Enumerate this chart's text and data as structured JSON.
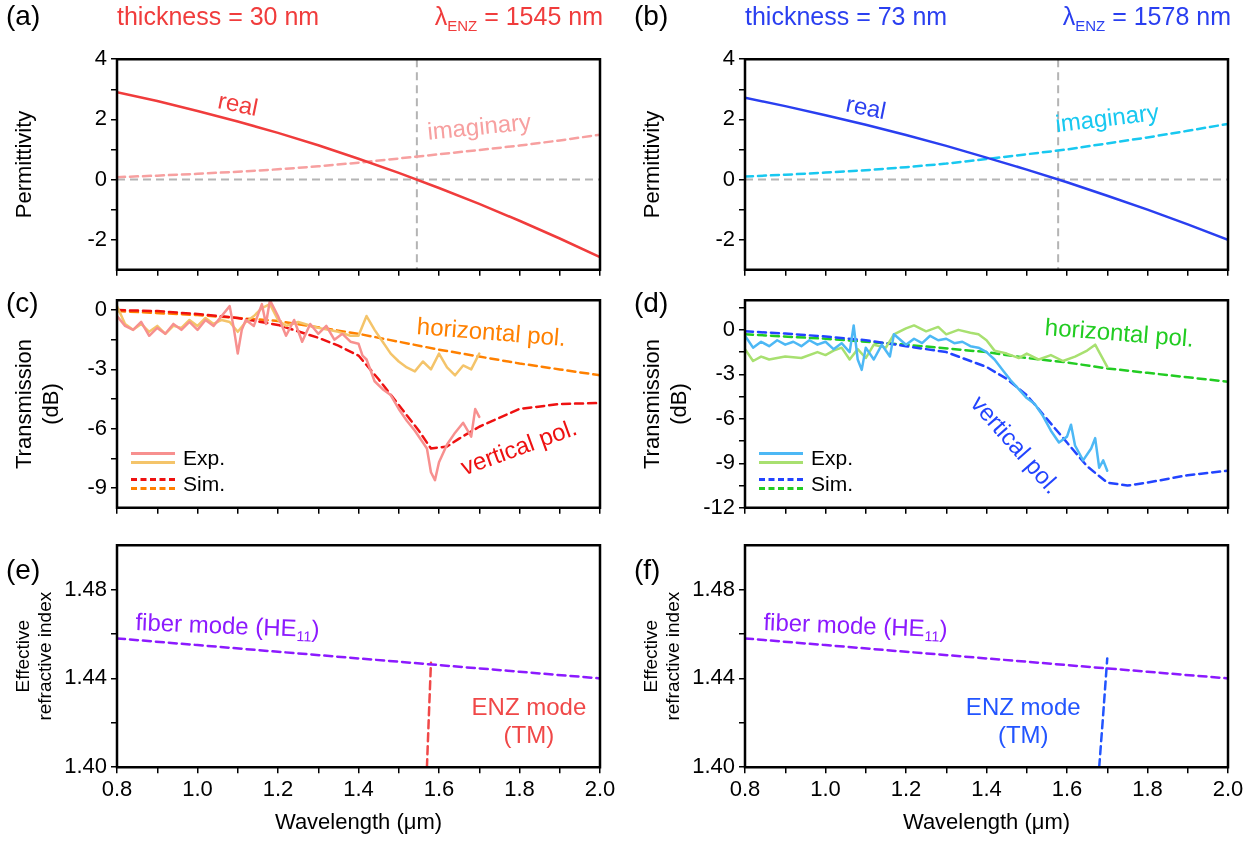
{
  "chart_data": [
    {
      "type": "line",
      "title": "thickness = 30 nm",
      "subtitle": "λ$_{ENZ}$ = 1545 nm",
      "ylabel": "Permittivity",
      "annotations": [
        "(a)"
      ],
      "x": [
        0.8,
        0.9,
        1.0,
        1.1,
        1.2,
        1.3,
        1.4,
        1.5,
        1.6,
        1.7,
        1.8,
        1.9,
        2.0
      ],
      "series": [
        {
          "name": "real",
          "color": "#f03c3c",
          "line_style": "solid",
          "values": [
            2.9,
            2.61,
            2.28,
            1.93,
            1.55,
            1.14,
            0.69,
            0.22,
            -0.28,
            -0.81,
            -1.37,
            -1.96,
            -2.58
          ]
        },
        {
          "name": "imaginary",
          "color": "#f7a0a0",
          "line_style": "dashed",
          "values": [
            0.08,
            0.13,
            0.19,
            0.26,
            0.34,
            0.44,
            0.56,
            0.7,
            0.84,
            0.98,
            1.13,
            1.3,
            1.49
          ]
        }
      ],
      "xlim": [
        0.8,
        2.0
      ],
      "xticks": [
        {
          "value": 0.8,
          "label": null
        },
        {
          "value": 0.9,
          "label": null
        },
        {
          "value": 1.0,
          "label": null
        },
        {
          "value": 1.1,
          "label": null
        },
        {
          "value": 1.2,
          "label": null
        },
        {
          "value": 1.3,
          "label": null
        },
        {
          "value": 1.4,
          "label": null
        },
        {
          "value": 1.5,
          "label": null
        },
        {
          "value": 1.6,
          "label": null
        },
        {
          "value": 1.7,
          "label": null
        },
        {
          "value": 1.8,
          "label": null
        },
        {
          "value": 1.9,
          "label": null
        },
        {
          "value": 2.0,
          "label": null
        }
      ],
      "ylim": [
        -3,
        4
      ],
      "yticks": [
        4,
        {
          "value": 3,
          "label": null
        },
        2,
        {
          "value": 1,
          "label": null
        },
        0,
        {
          "value": -1,
          "label": null
        },
        -2
      ],
      "ref_lines": [
        {
          "axis": "x",
          "value": 1.545,
          "color": "#b4b4b4",
          "line_style": "dashed"
        },
        {
          "axis": "y",
          "value": 0,
          "color": "#b4b4b4",
          "line_style": "dashed"
        }
      ],
      "tick_labels": "y",
      "legend": false,
      "grid": false
    },
    {
      "type": "line",
      "title": "thickness = 73 nm",
      "subtitle": "λ$_{ENZ}$ = 1578 nm",
      "ylabel": "Permittivity",
      "annotations": [
        "(b)"
      ],
      "x": [
        0.8,
        0.9,
        1.0,
        1.1,
        1.2,
        1.3,
        1.4,
        1.5,
        1.6,
        1.7,
        1.8,
        1.9,
        2.0
      ],
      "series": [
        {
          "name": "real",
          "color": "#2a3ff0",
          "line_style": "solid",
          "values": [
            2.72,
            2.44,
            2.14,
            1.82,
            1.48,
            1.12,
            0.73,
            0.33,
            -0.09,
            -0.54,
            -1.0,
            -1.49,
            -2.0
          ]
        },
        {
          "name": "imaginary",
          "color": "#18c8f0",
          "line_style": "dashed",
          "values": [
            0.1,
            0.16,
            0.23,
            0.31,
            0.41,
            0.53,
            0.68,
            0.84,
            1.0,
            1.2,
            1.4,
            1.62,
            1.85
          ]
        }
      ],
      "xlim": [
        0.8,
        2.0
      ],
      "xticks": [
        {
          "value": 0.8,
          "label": null
        },
        {
          "value": 0.9,
          "label": null
        },
        {
          "value": 1.0,
          "label": null
        },
        {
          "value": 1.1,
          "label": null
        },
        {
          "value": 1.2,
          "label": null
        },
        {
          "value": 1.3,
          "label": null
        },
        {
          "value": 1.4,
          "label": null
        },
        {
          "value": 1.5,
          "label": null
        },
        {
          "value": 1.6,
          "label": null
        },
        {
          "value": 1.7,
          "label": null
        },
        {
          "value": 1.8,
          "label": null
        },
        {
          "value": 1.9,
          "label": null
        },
        {
          "value": 2.0,
          "label": null
        }
      ],
      "ylim": [
        -3,
        4
      ],
      "yticks": [
        4,
        {
          "value": 3,
          "label": null
        },
        2,
        {
          "value": 1,
          "label": null
        },
        0,
        {
          "value": -1,
          "label": null
        },
        -2
      ],
      "ref_lines": [
        {
          "axis": "x",
          "value": 1.578,
          "color": "#b4b4b4",
          "line_style": "dashed"
        },
        {
          "axis": "y",
          "value": 0,
          "color": "#b4b4b4",
          "line_style": "dashed"
        }
      ],
      "tick_labels": "y",
      "legend": false,
      "grid": false
    },
    {
      "type": "line",
      "ylabel": "Transmission\n(dB)",
      "annotations": [
        "(c)",
        "horizontal pol.",
        "vertical pol."
      ],
      "series": [
        {
          "name": "Exp.",
          "color": "#f7908f",
          "line_style": "solid",
          "x": [
            0.8,
            0.82,
            0.84,
            0.86,
            0.88,
            0.9,
            0.92,
            0.94,
            0.96,
            0.98,
            1.0,
            1.02,
            1.04,
            1.06,
            1.08,
            1.09,
            1.1,
            1.11,
            1.12,
            1.14,
            1.16,
            1.17,
            1.18,
            1.2,
            1.22,
            1.24,
            1.26,
            1.28,
            1.3,
            1.32,
            1.34,
            1.36,
            1.38,
            1.4,
            1.41,
            1.42,
            1.44,
            1.46,
            1.48,
            1.5,
            1.52,
            1.54,
            1.56,
            1.57,
            1.58,
            1.59,
            1.6,
            1.62,
            1.64,
            1.66,
            1.68,
            1.69,
            1.7
          ],
          "values": [
            -0.3,
            -0.8,
            -1.0,
            -0.6,
            -1.3,
            -0.9,
            -1.2,
            -0.7,
            -1.0,
            -0.6,
            -1.0,
            -0.5,
            -0.8,
            -0.3,
            0.2,
            -0.9,
            -2.2,
            -1.0,
            -0.5,
            -0.8,
            0.3,
            -0.7,
            0.5,
            -0.3,
            -1.3,
            -0.5,
            -1.6,
            -0.7,
            -1.2,
            -0.8,
            -1.5,
            -1.2,
            -1.6,
            -1.7,
            -2.3,
            -2.5,
            -3.6,
            -4.0,
            -4.3,
            -5.0,
            -5.6,
            -6.1,
            -6.7,
            -7.0,
            -8.2,
            -8.6,
            -7.7,
            -6.8,
            -6.2,
            -5.7,
            -6.4,
            -5.0,
            -5.4
          ]
        },
        {
          "color": "#f4c46a",
          "line_style": "solid",
          "x": [
            0.8,
            0.82,
            0.84,
            0.86,
            0.88,
            0.9,
            0.92,
            0.94,
            0.96,
            0.98,
            1.0,
            1.02,
            1.04,
            1.06,
            1.08,
            1.1,
            1.12,
            1.14,
            1.16,
            1.18,
            1.2,
            1.22,
            1.25,
            1.3,
            1.35,
            1.38,
            1.4,
            1.42,
            1.44,
            1.46,
            1.48,
            1.5,
            1.52,
            1.54,
            1.56,
            1.58,
            1.6,
            1.62,
            1.64,
            1.66,
            1.68,
            1.7
          ],
          "values": [
            0.2,
            -0.7,
            -1.0,
            -0.7,
            -1.1,
            -0.8,
            -1.2,
            -0.8,
            -0.9,
            -0.5,
            -0.8,
            -0.4,
            -0.7,
            -0.5,
            -0.6,
            -1.1,
            -0.6,
            -0.3,
            0.1,
            0.3,
            -0.5,
            -0.8,
            -0.6,
            -0.9,
            -1.1,
            -1.3,
            -1.3,
            -0.3,
            -1.0,
            -1.6,
            -2.2,
            -2.6,
            -2.9,
            -3.1,
            -2.6,
            -3.0,
            -2.2,
            -2.9,
            -3.3,
            -2.8,
            -3.0,
            -2.2
          ]
        },
        {
          "name": "Sim.",
          "color": "#ee1111",
          "line_style": "dashed",
          "x": [
            0.8,
            0.9,
            1.0,
            1.1,
            1.2,
            1.3,
            1.35,
            1.4,
            1.45,
            1.5,
            1.55,
            1.58,
            1.62,
            1.65,
            1.7,
            1.8,
            1.9,
            2.0
          ],
          "values": [
            0.0,
            -0.05,
            -0.2,
            -0.4,
            -0.75,
            -1.4,
            -1.8,
            -2.3,
            -3.5,
            -4.8,
            -6.1,
            -7.0,
            -6.9,
            -6.5,
            -5.9,
            -5.0,
            -4.75,
            -4.7
          ]
        },
        {
          "color": "#ff8000",
          "line_style": "dashed",
          "x": [
            0.8,
            1.0,
            1.2,
            1.4,
            1.5,
            1.6,
            1.7,
            1.8,
            1.9,
            2.0
          ],
          "values": [
            -0.05,
            -0.25,
            -0.55,
            -1.2,
            -1.6,
            -2.0,
            -2.35,
            -2.7,
            -3.0,
            -3.3
          ]
        }
      ],
      "xlim": [
        0.8,
        2.0
      ],
      "xticks": [
        {
          "value": 0.8,
          "label": null
        },
        {
          "value": 0.9,
          "label": null
        },
        {
          "value": 1.0,
          "label": null
        },
        {
          "value": 1.1,
          "label": null
        },
        {
          "value": 1.2,
          "label": null
        },
        {
          "value": 1.3,
          "label": null
        },
        {
          "value": 1.4,
          "label": null
        },
        {
          "value": 1.5,
          "label": null
        },
        {
          "value": 1.6,
          "label": null
        },
        {
          "value": 1.7,
          "label": null
        },
        {
          "value": 1.8,
          "label": null
        },
        {
          "value": 1.9,
          "label": null
        },
        {
          "value": 2.0,
          "label": null
        }
      ],
      "ylim": [
        -10,
        0.5
      ],
      "yticks": [
        0,
        {
          "value": -1.5,
          "label": null
        },
        -3,
        {
          "value": -4.5,
          "label": null
        },
        -6,
        {
          "value": -7.5,
          "label": null
        },
        -9
      ],
      "tick_labels": "y",
      "legend": "bottom left",
      "grid": false
    },
    {
      "type": "line",
      "ylabel": "Transmission\n(dB)",
      "annotations": [
        "(d)",
        "horizontal pol.",
        "vertical pol."
      ],
      "series": [
        {
          "name": "Exp.",
          "color": "#4db8f5",
          "line_style": "solid",
          "x": [
            0.8,
            0.82,
            0.84,
            0.86,
            0.88,
            0.9,
            0.92,
            0.94,
            0.96,
            0.98,
            1.0,
            1.02,
            1.04,
            1.06,
            1.07,
            1.08,
            1.09,
            1.1,
            1.12,
            1.14,
            1.16,
            1.17,
            1.2,
            1.22,
            1.24,
            1.26,
            1.28,
            1.3,
            1.32,
            1.34,
            1.36,
            1.38,
            1.4,
            1.42,
            1.44,
            1.46,
            1.48,
            1.5,
            1.52,
            1.54,
            1.56,
            1.58,
            1.6,
            1.61,
            1.62,
            1.64,
            1.66,
            1.67,
            1.68,
            1.69,
            1.7
          ],
          "values": [
            -0.4,
            -1.2,
            -0.8,
            -1.1,
            -0.7,
            -1.0,
            -0.8,
            -1.1,
            -0.7,
            -1.0,
            -0.8,
            -1.3,
            -0.9,
            -1.5,
            0.3,
            -2.0,
            -2.7,
            -1.2,
            -2.0,
            -1.0,
            -1.8,
            -0.3,
            -1.0,
            -0.6,
            -0.9,
            -0.4,
            -0.7,
            -0.6,
            -0.9,
            -0.8,
            -1.1,
            -1.2,
            -1.5,
            -2.0,
            -2.7,
            -3.4,
            -4.0,
            -4.6,
            -5.0,
            -5.8,
            -6.8,
            -7.6,
            -7.2,
            -6.4,
            -7.8,
            -8.8,
            -8.0,
            -7.3,
            -9.3,
            -8.8,
            -9.5
          ]
        },
        {
          "color": "#a8e070",
          "line_style": "solid",
          "x": [
            0.8,
            0.82,
            0.84,
            0.86,
            0.9,
            0.94,
            0.98,
            1.0,
            1.02,
            1.04,
            1.06,
            1.08,
            1.1,
            1.12,
            1.15,
            1.17,
            1.2,
            1.22,
            1.25,
            1.28,
            1.3,
            1.33,
            1.36,
            1.38,
            1.4,
            1.42,
            1.45,
            1.48,
            1.5,
            1.53,
            1.56,
            1.59,
            1.62,
            1.65,
            1.67,
            1.68,
            1.7
          ],
          "values": [
            -1.3,
            -2.1,
            -1.8,
            -2.0,
            -1.8,
            -1.9,
            -1.5,
            -1.7,
            -1.4,
            -1.2,
            -2.0,
            -1.3,
            -1.9,
            -1.0,
            -1.2,
            -0.3,
            0.1,
            0.3,
            -0.1,
            0.2,
            -0.3,
            0.0,
            -0.2,
            -0.3,
            -0.7,
            -1.4,
            -1.6,
            -1.9,
            -1.6,
            -2.0,
            -1.7,
            -2.1,
            -1.8,
            -1.4,
            -1.0,
            -1.5,
            -2.5
          ]
        },
        {
          "name": "Sim.",
          "color": "#2244ff",
          "line_style": "dashed",
          "x": [
            0.8,
            0.9,
            1.0,
            1.1,
            1.2,
            1.3,
            1.4,
            1.45,
            1.5,
            1.55,
            1.6,
            1.65,
            1.7,
            1.75,
            1.8,
            1.9,
            2.0
          ],
          "values": [
            -0.1,
            -0.25,
            -0.45,
            -0.7,
            -1.1,
            -1.5,
            -2.5,
            -3.3,
            -4.4,
            -6.0,
            -7.6,
            -9.2,
            -10.3,
            -10.5,
            -10.3,
            -9.8,
            -9.5
          ]
        },
        {
          "color": "#22cc22",
          "line_style": "dashed",
          "x": [
            0.8,
            1.0,
            1.2,
            1.4,
            1.5,
            1.6,
            1.7,
            1.8,
            1.9,
            2.0
          ],
          "values": [
            -0.3,
            -0.6,
            -1.0,
            -1.5,
            -1.9,
            -2.2,
            -2.6,
            -2.9,
            -3.2,
            -3.5
          ]
        }
      ],
      "xlim": [
        0.8,
        2.0
      ],
      "xticks": [
        {
          "value": 0.8,
          "label": null
        },
        {
          "value": 0.9,
          "label": null
        },
        {
          "value": 1.0,
          "label": null
        },
        {
          "value": 1.1,
          "label": null
        },
        {
          "value": 1.2,
          "label": null
        },
        {
          "value": 1.3,
          "label": null
        },
        {
          "value": 1.4,
          "label": null
        },
        {
          "value": 1.5,
          "label": null
        },
        {
          "value": 1.6,
          "label": null
        },
        {
          "value": 1.7,
          "label": null
        },
        {
          "value": 1.8,
          "label": null
        },
        {
          "value": 1.9,
          "label": null
        },
        {
          "value": 2.0,
          "label": null
        }
      ],
      "ylim": [
        -12,
        2
      ],
      "yticks": [
        {
          "value": 1.5,
          "label": null
        },
        0,
        {
          "value": -1.5,
          "label": null
        },
        -3,
        {
          "value": -4.5,
          "label": null
        },
        -6,
        {
          "value": -7.5,
          "label": null
        },
        -9,
        {
          "value": -10.5,
          "label": null
        },
        -12
      ],
      "tick_labels": "y",
      "legend": "bottom left",
      "grid": false
    },
    {
      "type": "line",
      "xlabel": "Wavelength (μm)",
      "ylabel": "Effective\nrefractive index",
      "annotations": [
        "(e)"
      ],
      "series": [
        {
          "name": "fiber mode (HE$_{11}$)",
          "color": "#8c1aff",
          "line_style": "dashed",
          "x": [
            0.8,
            1.0,
            1.2,
            1.4,
            1.6,
            1.8,
            2.0
          ],
          "values": [
            1.458,
            1.455,
            1.452,
            1.449,
            1.446,
            1.443,
            1.44
          ]
        },
        {
          "name": "ENZ mode\n(TM)",
          "color": "#f04848",
          "line_style": "dashed",
          "x": [
            1.57,
            1.575,
            1.58
          ],
          "values": [
            1.4,
            1.424,
            1.447
          ]
        }
      ],
      "xlim": [
        0.8,
        2.0
      ],
      "xticks": [
        {
          "value": 0.8,
          "label": "0.8"
        },
        {
          "value": 0.9,
          "label": null
        },
        {
          "value": 1.0,
          "label": "1.0"
        },
        {
          "value": 1.1,
          "label": null
        },
        {
          "value": 1.2,
          "label": "1.2"
        },
        {
          "value": 1.3,
          "label": null
        },
        {
          "value": 1.4,
          "label": "1.4"
        },
        {
          "value": 1.5,
          "label": null
        },
        {
          "value": 1.6,
          "label": "1.6"
        },
        {
          "value": 1.7,
          "label": null
        },
        {
          "value": 1.8,
          "label": "1.8"
        },
        {
          "value": 1.9,
          "label": null
        },
        {
          "value": 2.0,
          "label": "2.0"
        }
      ],
      "ylim": [
        1.4,
        1.5
      ],
      "yticks": [
        {
          "value": 1.4,
          "label": "1.40"
        },
        {
          "value": 1.42,
          "label": null
        },
        {
          "value": 1.44,
          "label": "1.44"
        },
        {
          "value": 1.46,
          "label": null
        },
        {
          "value": 1.48,
          "label": "1.48"
        }
      ],
      "legend": false,
      "grid": false
    },
    {
      "type": "line",
      "xlabel": "Wavelength (μm)",
      "ylabel": "Effective\nrefractive index",
      "annotations": [
        "(f)"
      ],
      "series": [
        {
          "name": "fiber mode (HE$_{11}$)",
          "color": "#8c1aff",
          "line_style": "dashed",
          "x": [
            0.8,
            1.0,
            1.2,
            1.4,
            1.6,
            1.8,
            2.0
          ],
          "values": [
            1.458,
            1.455,
            1.452,
            1.449,
            1.446,
            1.443,
            1.44
          ]
        },
        {
          "name": "ENZ mode\n(TM)",
          "color": "#2255ff",
          "line_style": "dashed",
          "x": [
            1.68,
            1.69,
            1.7
          ],
          "values": [
            1.4,
            1.424,
            1.449
          ]
        }
      ],
      "xlim": [
        0.8,
        2.0
      ],
      "xticks": [
        {
          "value": 0.8,
          "label": "0.8"
        },
        {
          "value": 0.9,
          "label": null
        },
        {
          "value": 1.0,
          "label": "1.0"
        },
        {
          "value": 1.1,
          "label": null
        },
        {
          "value": 1.2,
          "label": "1.2"
        },
        {
          "value": 1.3,
          "label": null
        },
        {
          "value": 1.4,
          "label": "1.4"
        },
        {
          "value": 1.5,
          "label": null
        },
        {
          "value": 1.6,
          "label": "1.6"
        },
        {
          "value": 1.7,
          "label": null
        },
        {
          "value": 1.8,
          "label": "1.8"
        },
        {
          "value": 1.9,
          "label": null
        },
        {
          "value": 2.0,
          "label": "2.0"
        }
      ],
      "ylim": [
        1.4,
        1.5
      ],
      "yticks": [
        {
          "value": 1.4,
          "label": "1.40"
        },
        {
          "value": 1.42,
          "label": null
        },
        {
          "value": 1.44,
          "label": "1.44"
        },
        {
          "value": 1.46,
          "label": null
        },
        {
          "value": 1.48,
          "label": "1.48"
        }
      ],
      "legend": false,
      "grid": false
    }
  ]
}
